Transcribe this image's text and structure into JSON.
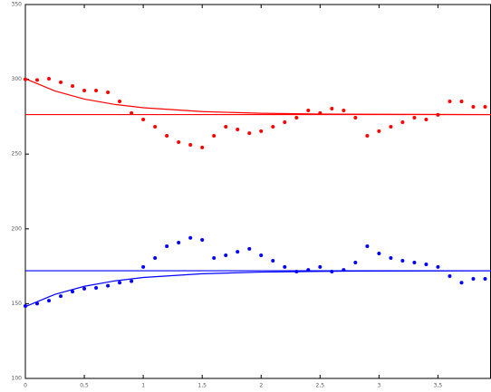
{
  "chart_data": {
    "type": "scatter",
    "xlim": [
      0,
      3.95
    ],
    "ylim": [
      100,
      350
    ],
    "xticks": [
      0,
      {
        "value": 0.5,
        "label": "0,5"
      },
      1,
      {
        "value": 1.5,
        "label": "1,5"
      },
      2,
      {
        "value": 2.5,
        "label": "2,5"
      },
      3,
      {
        "value": 3.5,
        "label": "3,5"
      }
    ],
    "yticks": [
      350,
      300,
      250,
      200,
      150,
      100
    ],
    "series": [
      {
        "color": "#ff0000",
        "mode": "markers",
        "x": [
          0,
          0.1,
          0.2,
          0.3,
          0.4,
          0.5,
          0.6,
          0.7,
          0.8,
          0.9,
          1.0,
          1.1,
          1.2,
          1.3,
          1.4,
          1.5,
          1.6,
          1.7,
          1.8,
          1.9,
          2.0,
          2.1,
          2.2,
          2.3,
          2.4,
          2.5,
          2.6,
          2.7,
          2.8,
          2.9,
          3.0,
          3.1,
          3.2,
          3.3,
          3.4,
          3.5,
          3.6,
          3.7,
          3.8,
          3.9
        ],
        "values": [
          300,
          299.5,
          300.4,
          298,
          295.5,
          292.5,
          292.5,
          291.3,
          285.2,
          277.4,
          273.1,
          268.3,
          262.2,
          258,
          256.2,
          254.4,
          262.2,
          268.3,
          266.5,
          264,
          265.3,
          268.3,
          271.3,
          274.3,
          279.2,
          277.4,
          280.4,
          279.2,
          274.3,
          262.2,
          265.3,
          268.3,
          271.3,
          274.3,
          273.1,
          276.2,
          285.2,
          285.2,
          281.6,
          281.6
        ]
      },
      {
        "color": "#ff0000",
        "mode": "line",
        "x": [
          0,
          0.25,
          0.5,
          0.75,
          1,
          1.5,
          2,
          2.5,
          3,
          3.95
        ],
        "values": [
          300.4,
          292.2,
          286.8,
          283.3,
          281,
          278.4,
          277.3,
          276.8,
          276.6,
          276.4
        ]
      },
      {
        "color": "#ff0000",
        "mode": "line",
        "x": [
          0,
          3.95
        ],
        "values": [
          276.4,
          276.4
        ]
      },
      {
        "color": "#0000ff",
        "mode": "markers",
        "x": [
          0,
          0.1,
          0.2,
          0.3,
          0.4,
          0.5,
          0.6,
          0.7,
          0.8,
          0.9,
          1.0,
          1.1,
          1.2,
          1.3,
          1.4,
          1.5,
          1.6,
          1.7,
          1.8,
          1.9,
          2.0,
          2.1,
          2.2,
          2.3,
          2.4,
          2.5,
          2.6,
          2.7,
          2.8,
          2.9,
          3.0,
          3.1,
          3.2,
          3.3,
          3.4,
          3.5,
          3.6,
          3.7,
          3.8,
          3.9
        ],
        "values": [
          148.4,
          150,
          152,
          155,
          158,
          160,
          160.5,
          162,
          164,
          165,
          174.5,
          180.5,
          188.4,
          190.8,
          194,
          192.6,
          180.5,
          182.3,
          184.7,
          186.6,
          182.3,
          178.7,
          174.5,
          171.4,
          172.6,
          174.5,
          171.4,
          172.6,
          177.5,
          188.4,
          183.5,
          180.5,
          178.7,
          177.5,
          176.3,
          174.5,
          168.4,
          164,
          166.6,
          166.6
        ]
      },
      {
        "color": "#0000ff",
        "mode": "line",
        "x": [
          0,
          0.25,
          0.5,
          0.75,
          1,
          1.5,
          2,
          2.5,
          3,
          3.95
        ],
        "values": [
          148,
          156.2,
          161.6,
          165.1,
          167.5,
          170,
          171.1,
          171.6,
          171.8,
          172
        ]
      },
      {
        "color": "#0000ff",
        "mode": "line",
        "x": [
          0,
          3.95
        ],
        "values": [
          172,
          172
        ]
      }
    ]
  }
}
